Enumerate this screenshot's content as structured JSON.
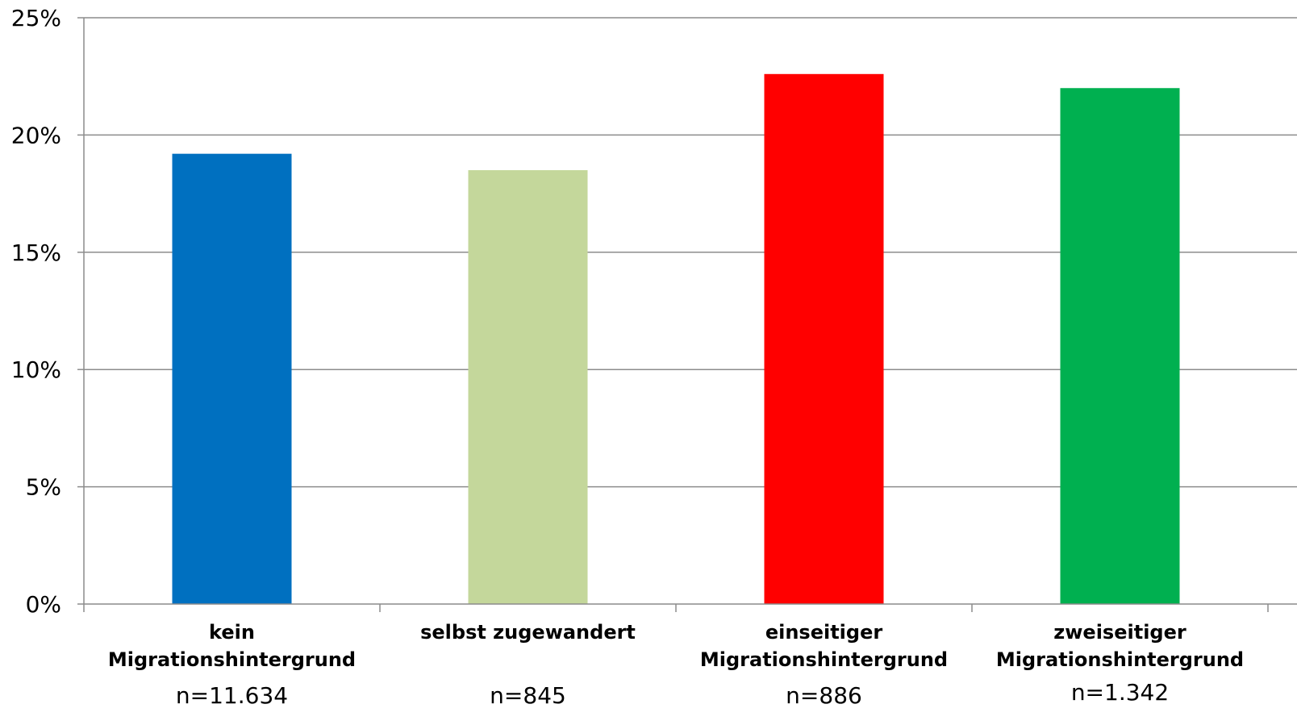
{
  "chart_data": {
    "type": "bar",
    "title": "",
    "xlabel": "",
    "ylabel": "",
    "categories": [
      [
        "kein",
        "Migrationshintergrund"
      ],
      [
        "selbst zugewandert"
      ],
      [
        "einseitiger",
        "Migrationshintergrund"
      ],
      [
        "zweiseitiger",
        "Migrationshintergrund"
      ]
    ],
    "sample_sizes": [
      "n=11.634",
      "n=845",
      "n=886",
      "n=1.342"
    ],
    "values": [
      19.2,
      18.5,
      22.6,
      22.0
    ],
    "colors": [
      "#0070C0",
      "#C4D79B",
      "#FF0000",
      "#00B050"
    ],
    "ylim": [
      0,
      25
    ],
    "yticks": [
      0,
      5,
      10,
      15,
      20,
      25
    ],
    "ytick_labels": [
      "0%",
      "5%",
      "10%",
      "15%",
      "20%",
      "25%"
    ],
    "grid": true,
    "legend": "none"
  }
}
